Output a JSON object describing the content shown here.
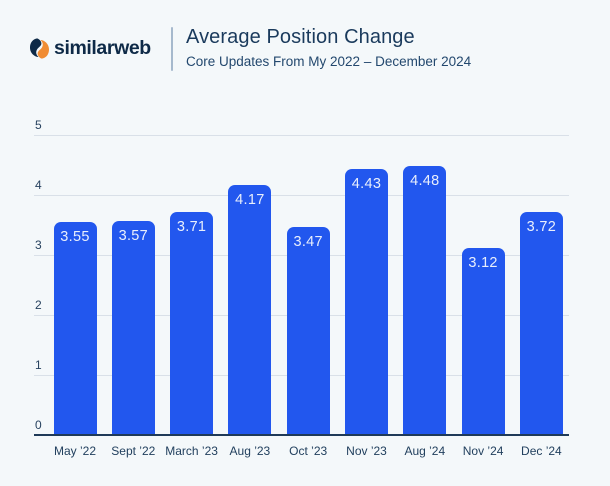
{
  "header": {
    "logo_text": "similarweb",
    "title": "Average Position Change",
    "subtitle": "Core Updates From My 2022 – December 2024"
  },
  "colors": {
    "background": "#f4f8fa",
    "bar": "#2257ee",
    "bar_label": "#e9effc",
    "gridline": "#d9e0e8",
    "axis_line": "#1f3a58",
    "text_dark": "#1a3a5c",
    "logo_navy": "#0e2a47",
    "logo_orange": "#f08c33"
  },
  "chart_data": {
    "type": "bar",
    "title": "Average Position Change",
    "subtitle": "Core Updates From My 2022 – December 2024",
    "categories": [
      "May ’22",
      "Sept ’22",
      "March ’23",
      "Aug ’23",
      "Oct ’23",
      "Nov ’23",
      "Aug ’24",
      "Nov ’24",
      "Dec ’24"
    ],
    "values": [
      3.55,
      3.57,
      3.71,
      4.17,
      3.47,
      4.43,
      4.48,
      3.12,
      3.72
    ],
    "value_labels": [
      "3.55",
      "3.57",
      "3.71",
      "4.17",
      "3.47",
      "4.43",
      "4.48",
      "3.12",
      "3.72"
    ],
    "xlabel": "",
    "ylabel": "",
    "ylim": [
      0,
      5
    ],
    "yticks": [
      0,
      1,
      2,
      3,
      4,
      5
    ],
    "grid": true,
    "legend": "none",
    "bar_color": "#2257ee"
  }
}
